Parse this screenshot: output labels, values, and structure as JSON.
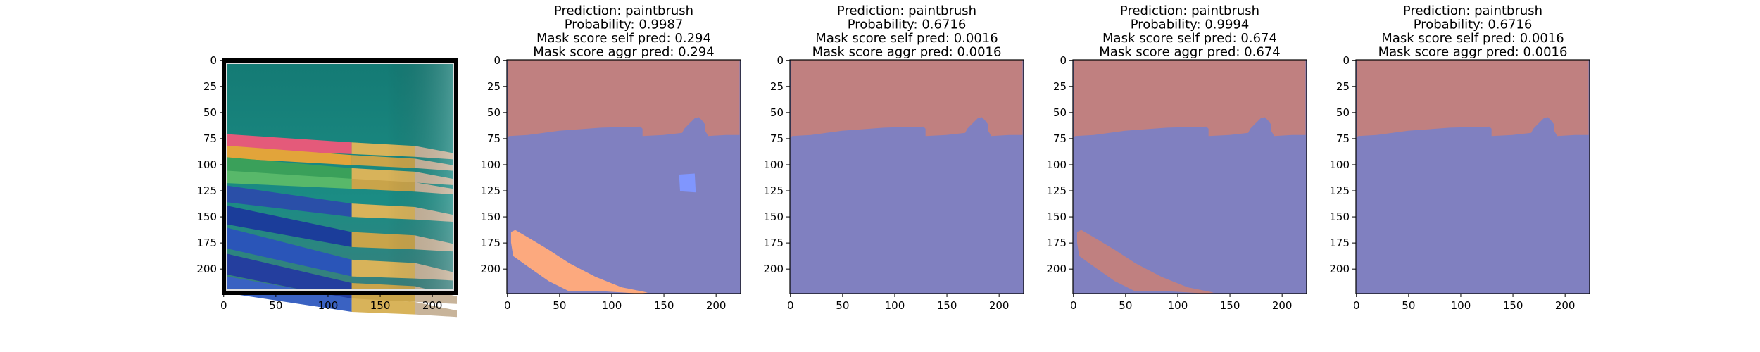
{
  "chart_data": [
    {
      "type": "image",
      "title_lines": [],
      "xticks": [
        0,
        50,
        100,
        150,
        200
      ],
      "yticks": [
        0,
        25,
        50,
        75,
        100,
        125,
        150,
        175,
        200
      ],
      "xlim": [
        0,
        224
      ],
      "ylim": [
        224,
        0
      ],
      "content": "photo of paintbrushes (pink, yellow, green, blue handles) on teal background"
    },
    {
      "type": "heatmap",
      "title_lines": [
        "Prediction: paintbrush",
        "Probability: 0.9987",
        "Mask score self pred: 0.294",
        "Mask score aggr pred: 0.294"
      ],
      "xticks": [
        0,
        50,
        100,
        150,
        200
      ],
      "yticks": [
        0,
        25,
        50,
        75,
        100,
        125,
        150,
        175,
        200
      ],
      "xlim": [
        0,
        224
      ],
      "ylim": [
        224,
        0
      ],
      "regions": [
        "background-red",
        "foreground-blue",
        "brush-orange",
        "small-light-blue-square"
      ]
    },
    {
      "type": "heatmap",
      "title_lines": [
        "Prediction: paintbrush",
        "Probability: 0.6716",
        "Mask score self pred: 0.0016",
        "Mask score aggr pred: 0.0016"
      ],
      "xticks": [
        0,
        50,
        100,
        150,
        200
      ],
      "yticks": [
        0,
        25,
        50,
        75,
        100,
        125,
        150,
        175,
        200
      ],
      "xlim": [
        0,
        224
      ],
      "ylim": [
        224,
        0
      ],
      "regions": [
        "background-red",
        "foreground-blue"
      ]
    },
    {
      "type": "heatmap",
      "title_lines": [
        "Prediction: paintbrush",
        "Probability: 0.9994",
        "Mask score self pred: 0.674",
        "Mask score aggr pred: 0.674"
      ],
      "xticks": [
        0,
        50,
        100,
        150,
        200
      ],
      "yticks": [
        0,
        25,
        50,
        75,
        100,
        125,
        150,
        175,
        200
      ],
      "xlim": [
        0,
        224
      ],
      "ylim": [
        224,
        0
      ],
      "regions": [
        "background-red",
        "foreground-blue",
        "brush-red"
      ]
    },
    {
      "type": "heatmap",
      "title_lines": [
        "Prediction: paintbrush",
        "Probability: 0.6716",
        "Mask score self pred: 0.0016",
        "Mask score aggr pred: 0.0016"
      ],
      "xticks": [
        0,
        50,
        100,
        150,
        200
      ],
      "yticks": [
        0,
        25,
        50,
        75,
        100,
        125,
        150,
        175,
        200
      ],
      "xlim": [
        0,
        224
      ],
      "ylim": [
        224,
        0
      ],
      "regions": [
        "background-red",
        "foreground-blue"
      ]
    }
  ],
  "colors": {
    "mask_blue": "#8080c0",
    "mask_red": "#c08080",
    "mask_orange": "#fca97e",
    "mask_lightblue": "#8096fe",
    "teal": "#1a8a82"
  }
}
